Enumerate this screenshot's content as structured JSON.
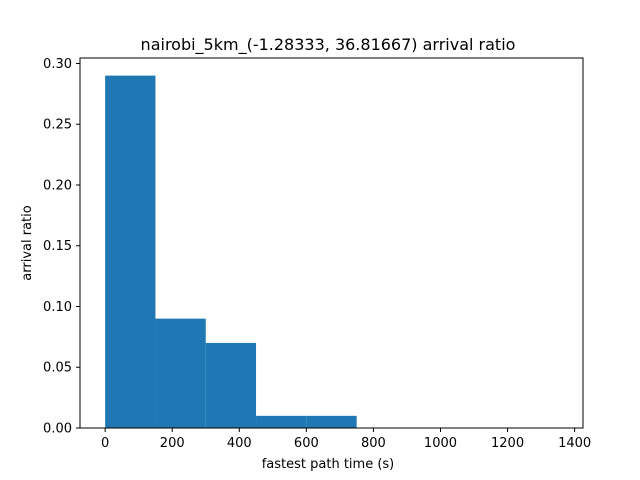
{
  "chart_data": {
    "type": "bar",
    "title": "nairobi_5km_(-1.28333, 36.81667) arrival ratio",
    "xlabel": "fastest path time (s)",
    "ylabel": "arrival ratio",
    "bins": [
      {
        "x0": 0,
        "x1": 150,
        "value": 0.29
      },
      {
        "x0": 150,
        "x1": 300,
        "value": 0.09
      },
      {
        "x0": 300,
        "x1": 450,
        "value": 0.07
      },
      {
        "x0": 450,
        "x1": 600,
        "value": 0.01
      },
      {
        "x0": 600,
        "x1": 750,
        "value": 0.01
      }
    ],
    "xlim": [
      -75,
      1425
    ],
    "ylim": [
      0,
      0.3045
    ],
    "xticks": [
      0,
      200,
      400,
      600,
      800,
      1000,
      1200,
      1400
    ],
    "xtick_labels": [
      "0",
      "200",
      "400",
      "600",
      "800",
      "1000",
      "1200",
      "1400"
    ],
    "yticks": [
      0,
      0.05,
      0.1,
      0.15,
      0.2,
      0.25,
      0.3
    ],
    "ytick_labels": [
      "0.00",
      "0.05",
      "0.10",
      "0.15",
      "0.20",
      "0.25",
      "0.30"
    ],
    "bar_color": "#1f77b4",
    "grid": false,
    "legend": "none"
  }
}
